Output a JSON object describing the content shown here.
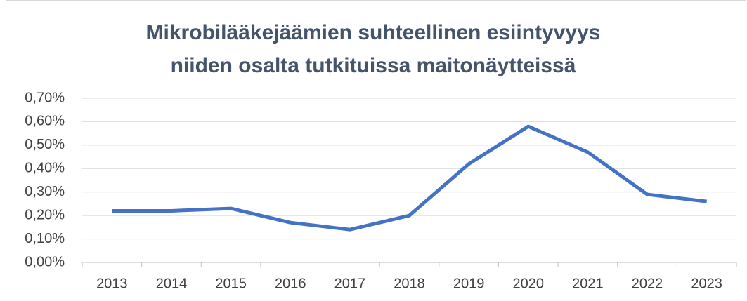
{
  "chart_data": {
    "type": "line",
    "title": [
      "Mikrobilääkejäämien suhteellinen esiintyvyys",
      "niiden osalta tutkituissa maitonäytteissä"
    ],
    "categories": [
      "2013",
      "2014",
      "2015",
      "2016",
      "2017",
      "2018",
      "2019",
      "2020",
      "2021",
      "2022",
      "2023"
    ],
    "series": [
      {
        "color": "#4472c4",
        "values": [
          0.22,
          0.22,
          0.23,
          0.17,
          0.14,
          0.2,
          0.42,
          0.58,
          0.47,
          0.29,
          0.26
        ]
      }
    ],
    "ylim": [
      0,
      0.7
    ],
    "yticks": [
      {
        "value": 0,
        "label": "0,00%"
      },
      {
        "value": 0.1,
        "label": "0,10%"
      },
      {
        "value": 0.2,
        "label": "0,20%"
      },
      {
        "value": 0.3,
        "label": "0,30%"
      },
      {
        "value": 0.4,
        "label": "0,40%"
      },
      {
        "value": 0.5,
        "label": "0,50%"
      },
      {
        "value": 0.6,
        "label": "0,60%"
      },
      {
        "value": 0.7,
        "label": "0,70%"
      }
    ],
    "grid": true
  }
}
